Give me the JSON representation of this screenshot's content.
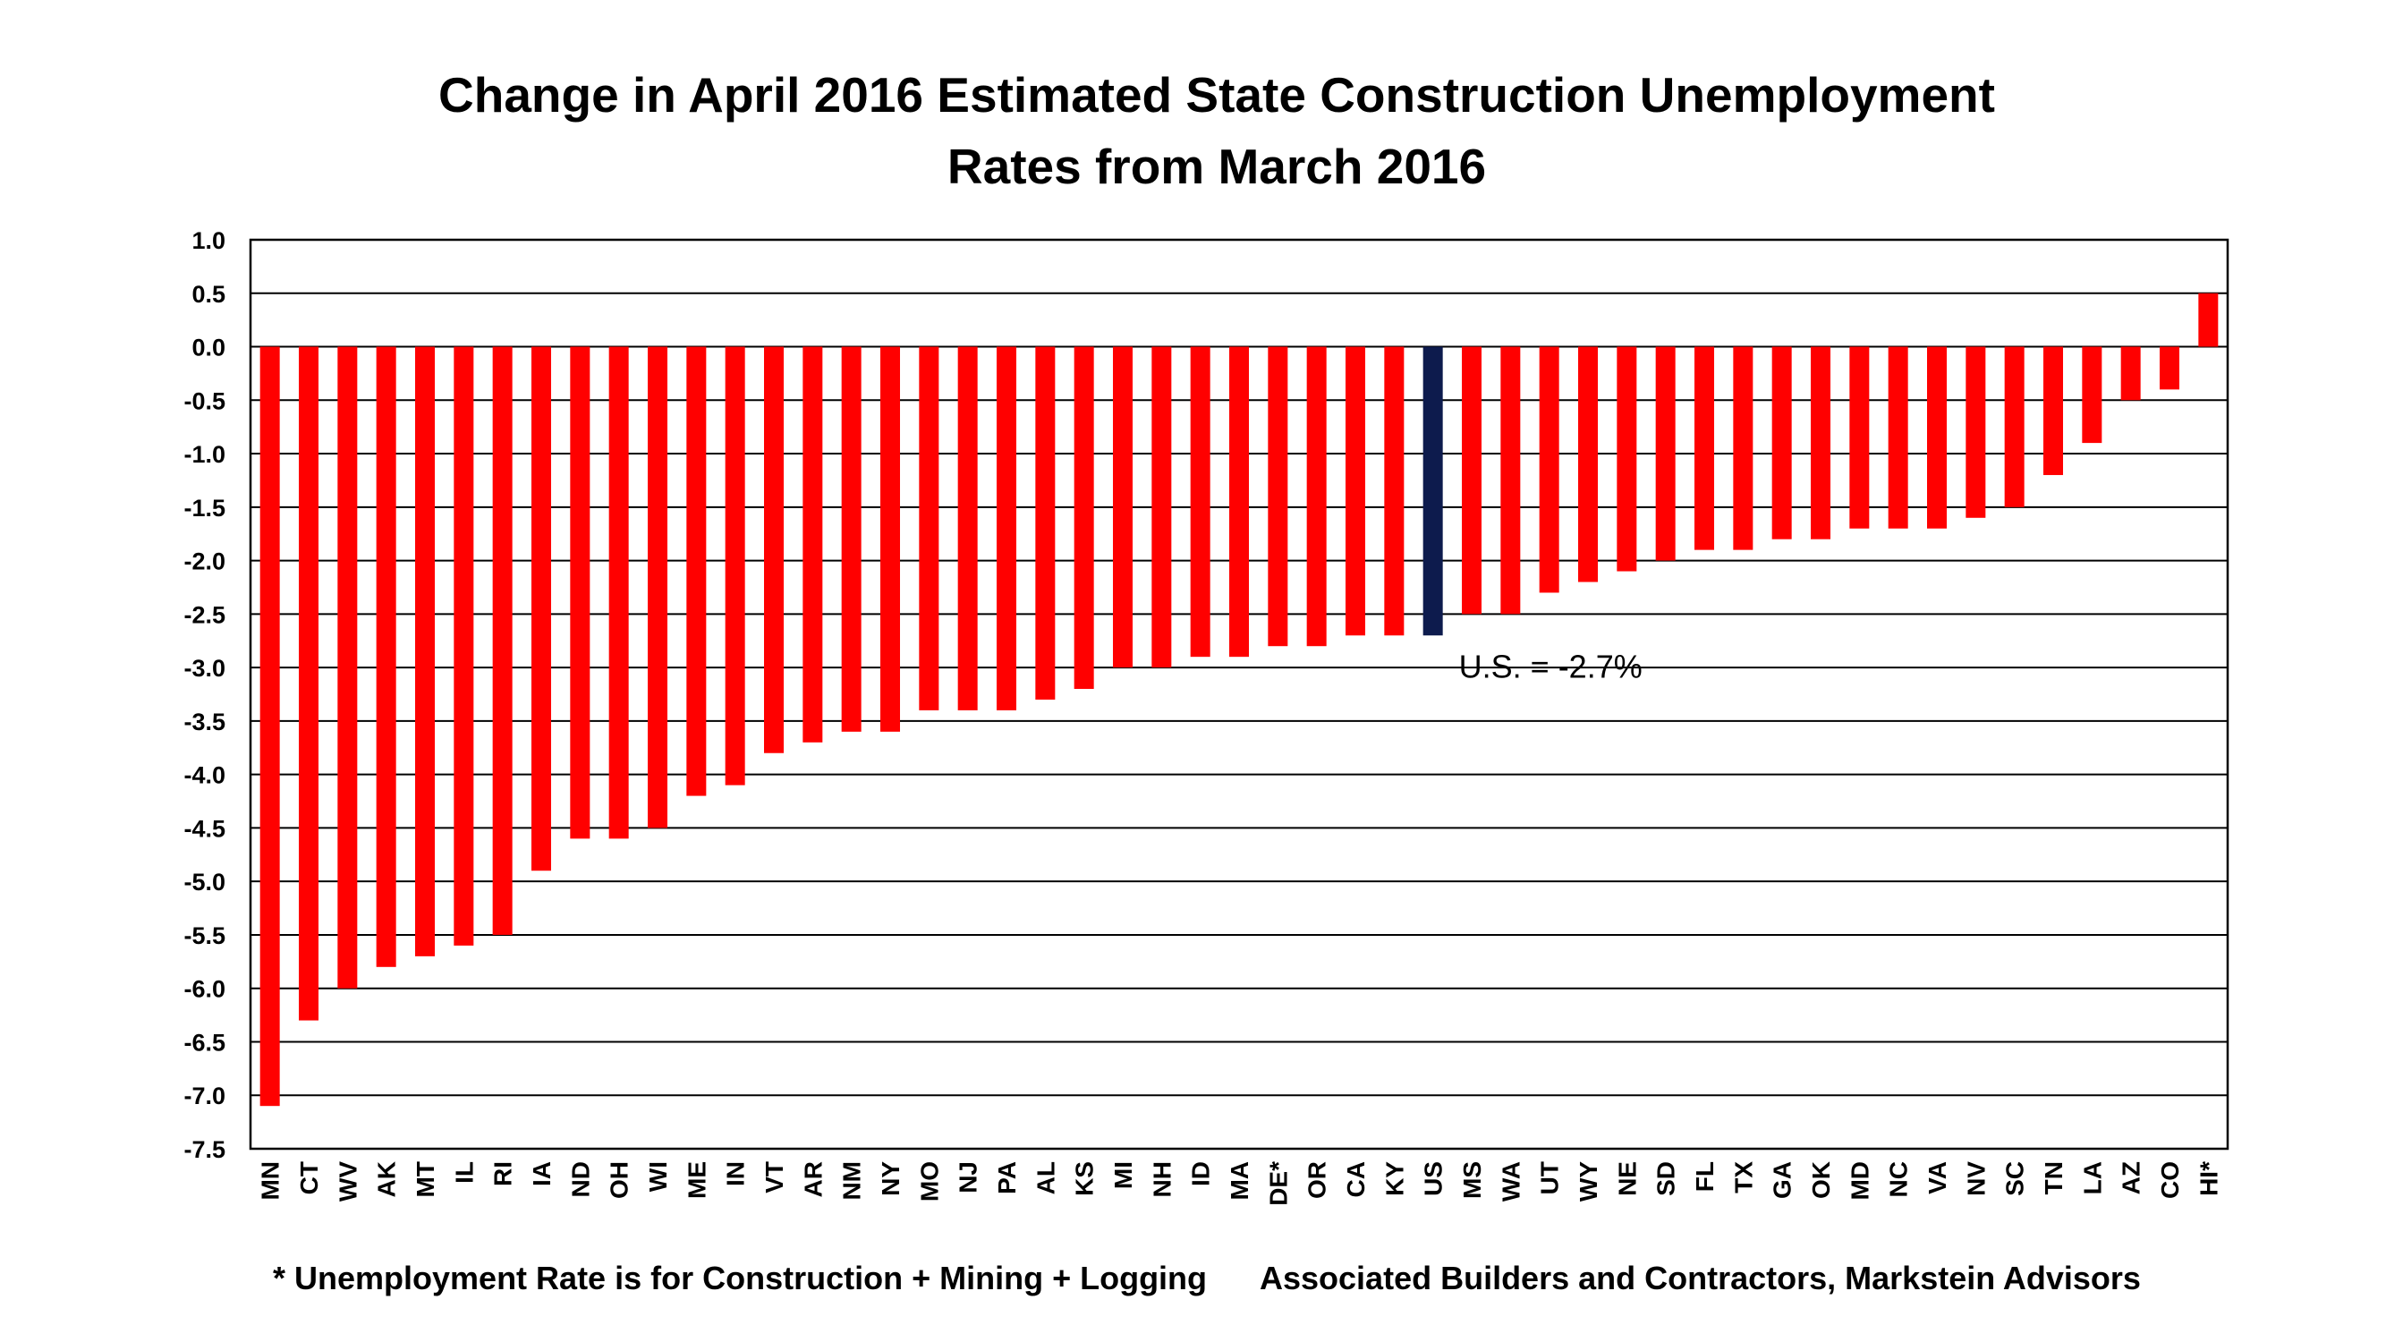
{
  "title_line1": "Change in April 2016 Estimated State Construction Unemployment",
  "title_line2": "Rates from March 2016",
  "footnote": "* Unemployment Rate is for Construction + Mining + Logging",
  "source": "Associated Builders and Contractors, Markstein Advisors",
  "colors": {
    "bar": "#ff0000",
    "highlight": "#0d1b4d",
    "grid": "#000000"
  },
  "chart_data": {
    "type": "bar",
    "title": "Change in April 2016 Estimated State Construction Unemployment Rates from March 2016",
    "xlabel": "",
    "ylabel": "",
    "ylim": [
      -7.5,
      1.0
    ],
    "yticks": [
      1.0,
      0.5,
      0.0,
      -0.5,
      -1.0,
      -1.5,
      -2.0,
      -2.5,
      -3.0,
      -3.5,
      -4.0,
      -4.5,
      -5.0,
      -5.5,
      -6.0,
      -6.5,
      -7.0,
      -7.5
    ],
    "ytick_labels": [
      "1.0",
      "0.5",
      "0.0",
      "-0.5",
      "-1.0",
      "-1.5",
      "-2.0",
      "-2.5",
      "-3.0",
      "-3.5",
      "-4.0",
      "-4.5",
      "-5.0",
      "-5.5",
      "-6.0",
      "-6.5",
      "-7.0",
      "-7.5"
    ],
    "grid": true,
    "highlight_category": "US",
    "annotation": "U.S. = -2.7%",
    "categories": [
      "MN",
      "CT",
      "WV",
      "AK",
      "MT",
      "IL",
      "RI",
      "IA",
      "ND",
      "OH",
      "WI",
      "ME",
      "IN",
      "VT",
      "AR",
      "NM",
      "NY",
      "MO",
      "NJ",
      "PA",
      "AL",
      "KS",
      "MI",
      "NH",
      "ID",
      "MA",
      "DE*",
      "OR",
      "CA",
      "KY",
      "US",
      "MS",
      "WA",
      "UT",
      "WY",
      "NE",
      "SD",
      "FL",
      "TX",
      "GA",
      "OK",
      "MD",
      "NC",
      "VA",
      "NV",
      "SC",
      "TN",
      "LA",
      "AZ",
      "CO",
      "HI*"
    ],
    "values": [
      -7.1,
      -6.3,
      -6.0,
      -5.8,
      -5.7,
      -5.6,
      -5.5,
      -4.9,
      -4.6,
      -4.6,
      -4.5,
      -4.2,
      -4.1,
      -3.8,
      -3.7,
      -3.6,
      -3.6,
      -3.4,
      -3.4,
      -3.4,
      -3.3,
      -3.2,
      -3.0,
      -3.0,
      -2.9,
      -2.9,
      -2.8,
      -2.8,
      -2.7,
      -2.7,
      -2.7,
      -2.5,
      -2.5,
      -2.3,
      -2.2,
      -2.1,
      -2.0,
      -1.9,
      -1.9,
      -1.8,
      -1.8,
      -1.7,
      -1.7,
      -1.7,
      -1.6,
      -1.5,
      -1.2,
      -0.9,
      -0.5,
      -0.4,
      0.5
    ]
  }
}
